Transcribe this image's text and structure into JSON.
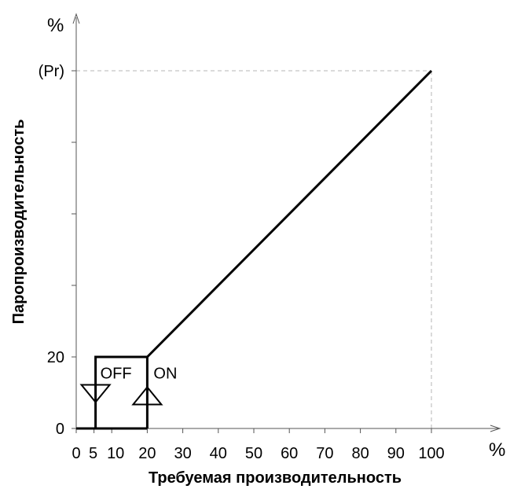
{
  "chart_data": {
    "type": "line",
    "xlabel": "Требуемая производительность",
    "ylabel": "Паропроизводительность",
    "x_unit": "%",
    "y_unit": "%",
    "x_ticks": [
      "0",
      "5",
      "10",
      "20",
      "30",
      "40",
      "50",
      "60",
      "70",
      "80",
      "90",
      "100"
    ],
    "x_tick_values": [
      0,
      5,
      10,
      20,
      30,
      40,
      50,
      60,
      70,
      80,
      90,
      100
    ],
    "y_tick_labels": [
      {
        "label": "0",
        "value": 0
      },
      {
        "label": "20",
        "value": 20
      },
      {
        "label": "(Pr)",
        "value": 100
      }
    ],
    "y_minor_ticks": [
      40,
      60,
      80
    ],
    "xlim": [
      0,
      100
    ],
    "ylim": [
      0,
      100
    ],
    "series": [
      {
        "x": [
          20,
          100
        ],
        "y": [
          20,
          100
        ],
        "color": "#000000"
      }
    ],
    "hysteresis": {
      "box_x": [
        5,
        20
      ],
      "box_y": [
        0,
        20
      ],
      "off_label": "OFF",
      "on_label": "ON",
      "off_x": 5,
      "on_x": 20,
      "level": 10
    },
    "guides": {
      "x": 100,
      "y": 100,
      "style": "dashed"
    },
    "grid": false,
    "legend": "none"
  }
}
